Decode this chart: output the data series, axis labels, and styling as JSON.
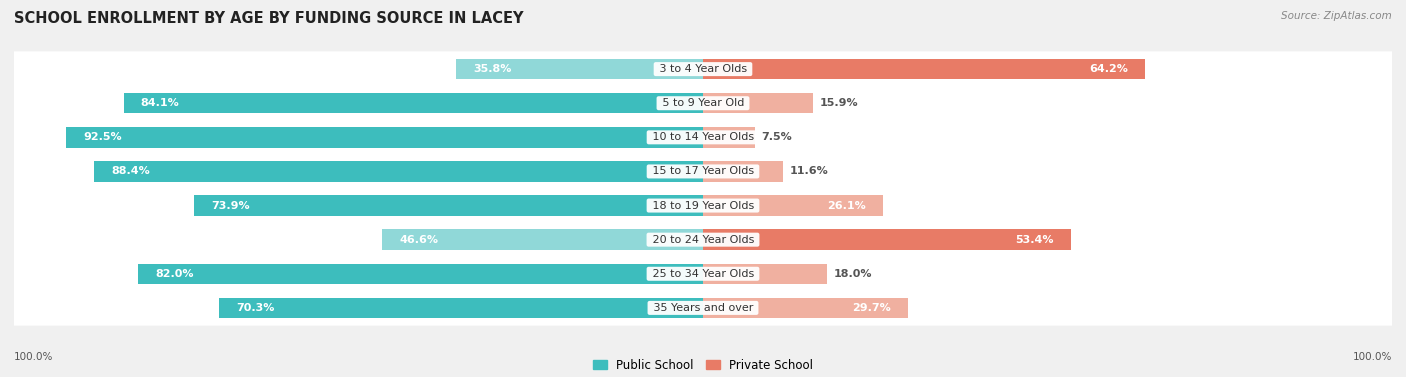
{
  "title": "SCHOOL ENROLLMENT BY AGE BY FUNDING SOURCE IN LACEY",
  "source": "Source: ZipAtlas.com",
  "categories": [
    "3 to 4 Year Olds",
    "5 to 9 Year Old",
    "10 to 14 Year Olds",
    "15 to 17 Year Olds",
    "18 to 19 Year Olds",
    "20 to 24 Year Olds",
    "25 to 34 Year Olds",
    "35 Years and over"
  ],
  "public_values": [
    35.8,
    84.1,
    92.5,
    88.4,
    73.9,
    46.6,
    82.0,
    70.3
  ],
  "private_values": [
    64.2,
    15.9,
    7.5,
    11.6,
    26.1,
    53.4,
    18.0,
    29.7
  ],
  "public_labels": [
    "35.8%",
    "84.1%",
    "92.5%",
    "88.4%",
    "73.9%",
    "46.6%",
    "82.0%",
    "70.3%"
  ],
  "private_labels": [
    "64.2%",
    "15.9%",
    "7.5%",
    "11.6%",
    "26.1%",
    "53.4%",
    "18.0%",
    "29.7%"
  ],
  "public_color_strong": "#3dbdbd",
  "public_color_light": "#90d8d8",
  "private_color_strong": "#e87b66",
  "private_color_light": "#f0b0a0",
  "background_color": "#f0f0f0",
  "row_bg_color": "#ffffff",
  "title_fontsize": 10.5,
  "label_fontsize": 8.0,
  "category_fontsize": 8.0,
  "legend_fontsize": 8.5,
  "axis_label_fontsize": 7.5,
  "public_strong_threshold": 70,
  "private_strong_threshold": 40
}
